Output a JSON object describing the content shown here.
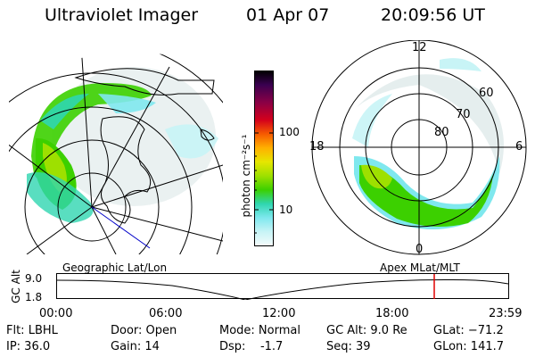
{
  "header": {
    "instrument": "Ultraviolet Imager",
    "date": "01 Apr 07",
    "time": "20:09:56 UT"
  },
  "colorbar": {
    "unit_label": "photon cm⁻²s⁻¹",
    "ticks": [
      "100",
      "10"
    ],
    "colors": [
      "#000000",
      "#3a0050",
      "#8a0046",
      "#d4001c",
      "#f65a00",
      "#ffb000",
      "#e6e600",
      "#9ee000",
      "#3cd000",
      "#2fd6b0",
      "#7fe8ee",
      "#c8f4f6",
      "#f4fbfb"
    ]
  },
  "left_map": {
    "label": "Geographic Lat/Lon"
  },
  "right_map": {
    "label": "Apex MLat/MLT",
    "mlt_labels": {
      "top": "12",
      "left": "18",
      "right": "6",
      "bottom": "0"
    },
    "lat_labels": [
      "60",
      "70",
      "80"
    ]
  },
  "timeline": {
    "ylabel": "GC Alt",
    "yticks": [
      "9.0",
      "1.8"
    ],
    "xticks": [
      "00:00",
      "06:00",
      "12:00",
      "18:00",
      "23:59"
    ],
    "current_time_color": "#e00000"
  },
  "info": {
    "filter": "Flt: LBHL",
    "ip": "IP: 36.0",
    "door": "Door: Open",
    "gain": "Gain: 14",
    "mode": "Mode: Normal",
    "dsp": "Dsp:    -1.7",
    "gc_alt": "GC Alt: 9.0 Re",
    "seq": "Seq: 39",
    "glat": "GLat: −71.2",
    "glon": "GLon: 141.7"
  }
}
